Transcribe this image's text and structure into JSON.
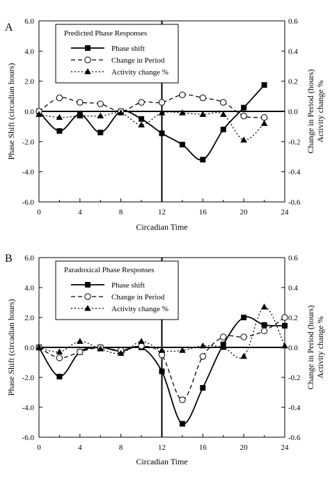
{
  "chart_data": [
    {
      "type": "line",
      "panel_label": "A",
      "legend_title": "Predicted Phase Responses",
      "xlabel": "Circadian Time",
      "ylabel_left": "Phase Shift (circadian hours)",
      "ylabel_right_1": "Change in Period (hours)",
      "ylabel_right_2": "Activity change %",
      "xlim": [
        0,
        24
      ],
      "ylim_left": [
        -6,
        6
      ],
      "ylim_right": [
        -0.6,
        0.6
      ],
      "x_ticks": [
        "0",
        "4",
        "8",
        "12",
        "16",
        "20",
        "24"
      ],
      "y_ticks_left": [
        "6.0",
        "4.0",
        "2.0",
        "0.0",
        "-2.0",
        "-4.0",
        "-6.0"
      ],
      "y_ticks_right": [
        "0.6",
        "0.4",
        "0.2",
        "0.0",
        "-0.2",
        "-0.4",
        "-0.6"
      ],
      "grid": false,
      "legend_position": "top-center",
      "series": [
        {
          "name": "Phase shift",
          "axis": "left",
          "style": "solid",
          "marker": "square",
          "x": [
            0,
            2,
            4,
            6,
            8,
            10,
            12,
            14,
            16,
            18,
            20,
            22
          ],
          "y": [
            0.0,
            -1.3,
            -0.2,
            -1.4,
            0.0,
            -0.5,
            -1.45,
            -2.2,
            -3.2,
            -1.2,
            0.25,
            1.75
          ]
        },
        {
          "name": "Change in Period",
          "axis": "right",
          "style": "dashed",
          "marker": "circle",
          "x": [
            0,
            2,
            4,
            6,
            8,
            10,
            12,
            14,
            16,
            18,
            20,
            22
          ],
          "y": [
            0.0,
            0.09,
            0.06,
            0.05,
            0.0,
            0.06,
            0.06,
            0.11,
            0.09,
            0.06,
            -0.03,
            -0.04
          ]
        },
        {
          "name": "Activity change %",
          "axis": "right",
          "style": "dotted",
          "marker": "triangle",
          "x": [
            0,
            2,
            4,
            6,
            8,
            10,
            12,
            14,
            16,
            18,
            20,
            22
          ],
          "y": [
            -0.02,
            -0.04,
            -0.03,
            -0.03,
            -0.01,
            -0.09,
            -0.01,
            -0.01,
            -0.02,
            -0.02,
            -0.19,
            -0.08
          ]
        }
      ]
    },
    {
      "type": "line",
      "panel_label": "B",
      "legend_title": "Paradoxical Phase Responses",
      "xlabel": "Circadian Time",
      "ylabel_left": "Phase Shift (circadian hours)",
      "ylabel_right_1": "Change in Period (hours)",
      "ylabel_right_2": "Activity change %",
      "xlim": [
        0,
        24
      ],
      "ylim_left": [
        -6,
        6
      ],
      "ylim_right": [
        -0.6,
        0.6
      ],
      "x_ticks": [
        "0",
        "4",
        "8",
        "12",
        "16",
        "20",
        "24"
      ],
      "y_ticks_left": [
        "6.0",
        "4.0",
        "2.0",
        "0.0",
        "-2.0",
        "-4.0",
        "-6.0"
      ],
      "y_ticks_right": [
        "0.6",
        "0.4",
        "0.2",
        "0.0",
        "-0.2",
        "-0.4",
        "-0.6"
      ],
      "grid": false,
      "legend_position": "top-center",
      "series": [
        {
          "name": "Phase shift",
          "axis": "left",
          "style": "solid",
          "marker": "square",
          "x": [
            0,
            2,
            4,
            6,
            8,
            10,
            12,
            14,
            16,
            18,
            20,
            22,
            24
          ],
          "y": [
            0.0,
            -1.95,
            -0.3,
            0.0,
            -0.25,
            0.0,
            -1.6,
            -5.1,
            -2.7,
            0.2,
            2.0,
            1.5,
            1.45
          ]
        },
        {
          "name": "Change in Period",
          "axis": "right",
          "style": "dashed",
          "marker": "circle",
          "x": [
            0,
            2,
            4,
            6,
            8,
            10,
            12,
            14,
            16,
            18,
            20,
            22,
            24
          ],
          "y": [
            0.0,
            -0.07,
            -0.03,
            0.0,
            -0.02,
            0.01,
            -0.05,
            -0.35,
            -0.06,
            0.07,
            0.07,
            0.11,
            0.2
          ]
        },
        {
          "name": "Activity change %",
          "axis": "right",
          "style": "dotted",
          "marker": "triangle",
          "x": [
            0,
            2,
            4,
            6,
            8,
            10,
            12,
            14,
            16,
            18,
            20,
            22,
            24
          ],
          "y": [
            0.0,
            -0.03,
            0.04,
            -0.01,
            -0.04,
            0.04,
            -0.02,
            -0.02,
            0.01,
            0.0,
            -0.06,
            0.27,
            0.01
          ]
        }
      ]
    }
  ]
}
